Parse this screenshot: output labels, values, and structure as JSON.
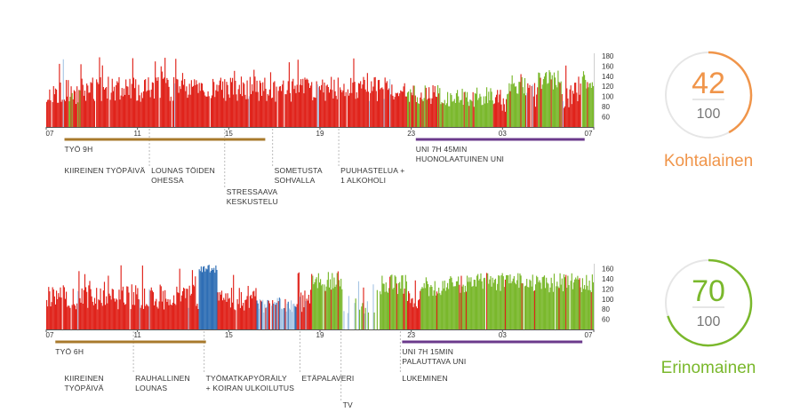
{
  "colors": {
    "stress": "#e0231b",
    "recovery": "#7ab82c",
    "activity": "#2f6eb5",
    "light_activity": "#a9c6e4",
    "work_line": "#a87a2c",
    "sleep_line": "#6b3a8c",
    "moderate": "#f0954a",
    "excellent": "#7ab82c",
    "ring_bg": "#e6e6e6",
    "annotation_line": "#bbbbbb"
  },
  "chart_data": [
    {
      "type": "bar",
      "x_ticks": [
        "07",
        "11",
        "15",
        "19",
        "23",
        "03",
        "07"
      ],
      "y_ticks": [
        60,
        80,
        100,
        120,
        140,
        160,
        180
      ],
      "ylim": [
        40,
        185
      ],
      "legend": "none",
      "grid": false,
      "segments": [
        {
          "from": 0.0,
          "to": 1.0,
          "state": "stress",
          "base": 108
        },
        {
          "from": 1.0,
          "to": 1.5,
          "state": "mixed",
          "base": 100
        },
        {
          "from": 1.5,
          "to": 15.8,
          "state": "stress",
          "base": 112
        },
        {
          "from": 15.8,
          "to": 17.5,
          "state": "mixed",
          "base": 100
        },
        {
          "from": 17.5,
          "to": 19.6,
          "state": "recovery",
          "base": 95
        },
        {
          "from": 19.6,
          "to": 20.2,
          "state": "stress",
          "base": 90
        },
        {
          "from": 20.2,
          "to": 21.0,
          "state": "recovery",
          "base": 120
        },
        {
          "from": 21.0,
          "to": 21.5,
          "state": "stress",
          "base": 100
        },
        {
          "from": 21.5,
          "to": 22.6,
          "state": "recovery",
          "base": 128
        },
        {
          "from": 22.6,
          "to": 23.5,
          "state": "stress",
          "base": 100
        },
        {
          "from": 23.5,
          "to": 24.0,
          "state": "recovery",
          "base": 128
        }
      ],
      "bands": [
        {
          "label": "TYÖ 9H",
          "from": 0.8,
          "to": 9.6,
          "color": "work_line"
        },
        {
          "label": "UNI 7H 45MIN\nHUONOLAATUINEN UNI",
          "from": 16.2,
          "to": 23.6,
          "color": "sleep_line"
        }
      ],
      "annotations": [
        {
          "label": "KIIREINEN TYÖPÄIVÄ",
          "at": 0.8,
          "row": 1,
          "line": false
        },
        {
          "label": "LOUNAS TÖIDEN\nOHESSA",
          "at": 4.6,
          "row": 1,
          "line": true
        },
        {
          "label": "STRESSAAVA\nKESKUSTELU",
          "at": 7.9,
          "row": 2,
          "line": true
        },
        {
          "label": "SOMETUSTA\nSOHVALLA",
          "at": 10.0,
          "row": 1,
          "line": true
        },
        {
          "label": "PUUHASTELUA +\n1 ALKOHOLI",
          "at": 12.9,
          "row": 1,
          "line": true
        }
      ],
      "score": {
        "value": "42",
        "max": "100",
        "rating": "Kohtalainen",
        "fraction": 0.42,
        "color": "moderate"
      }
    },
    {
      "type": "bar",
      "x_ticks": [
        "07",
        "11",
        "15",
        "19",
        "23",
        "03",
        "07"
      ],
      "y_ticks": [
        60,
        80,
        100,
        120,
        140,
        160
      ],
      "ylim": [
        40,
        170
      ],
      "legend": "none",
      "grid": false,
      "segments": [
        {
          "from": 0.0,
          "to": 6.7,
          "state": "stress",
          "base": 102
        },
        {
          "from": 6.7,
          "to": 7.5,
          "state": "activity",
          "base": 160
        },
        {
          "from": 7.5,
          "to": 9.2,
          "state": "stress",
          "base": 100
        },
        {
          "from": 9.2,
          "to": 11.0,
          "state": "light",
          "base": 82
        },
        {
          "from": 11.0,
          "to": 11.6,
          "state": "stress",
          "base": 92
        },
        {
          "from": 11.6,
          "to": 13.0,
          "state": "recovery",
          "base": 132
        },
        {
          "from": 13.0,
          "to": 14.6,
          "state": "sparse",
          "base": 70
        },
        {
          "from": 14.6,
          "to": 15.8,
          "state": "recovery",
          "base": 125
        },
        {
          "from": 15.8,
          "to": 16.4,
          "state": "stress",
          "base": 90
        },
        {
          "from": 16.4,
          "to": 17.4,
          "state": "recovery",
          "base": 120
        },
        {
          "from": 17.4,
          "to": 24.0,
          "state": "recovery",
          "base": 128
        }
      ],
      "bands": [
        {
          "label": "TYÖ 6H",
          "from": 0.4,
          "to": 7.0,
          "color": "work_line"
        },
        {
          "label": "UNI 7H 15MIN\nPALAUTTAVA UNI",
          "from": 15.6,
          "to": 23.5,
          "color": "sleep_line"
        }
      ],
      "annotations": [
        {
          "label": "KIIREINEN\nTYÖPÄIVÄ",
          "at": 0.8,
          "row": 1,
          "line": false
        },
        {
          "label": "RAUHALLINEN\nLOUNAS",
          "at": 3.9,
          "row": 1,
          "line": true
        },
        {
          "label": "TYÖMATKAPYÖRÄILY\n+ KOIRAN ULKOILUTUS",
          "at": 7.0,
          "row": 1,
          "line": true
        },
        {
          "label": "ETÄPALAVERI",
          "at": 11.2,
          "row": 1,
          "line": true
        },
        {
          "label": "TV",
          "at": 13.0,
          "row": 2,
          "line": true
        },
        {
          "label": "LUKEMINEN",
          "at": 15.6,
          "row": 1,
          "line": true
        }
      ],
      "score": {
        "value": "70",
        "max": "100",
        "rating": "Erinomainen",
        "fraction": 0.7,
        "color": "excellent"
      }
    }
  ]
}
